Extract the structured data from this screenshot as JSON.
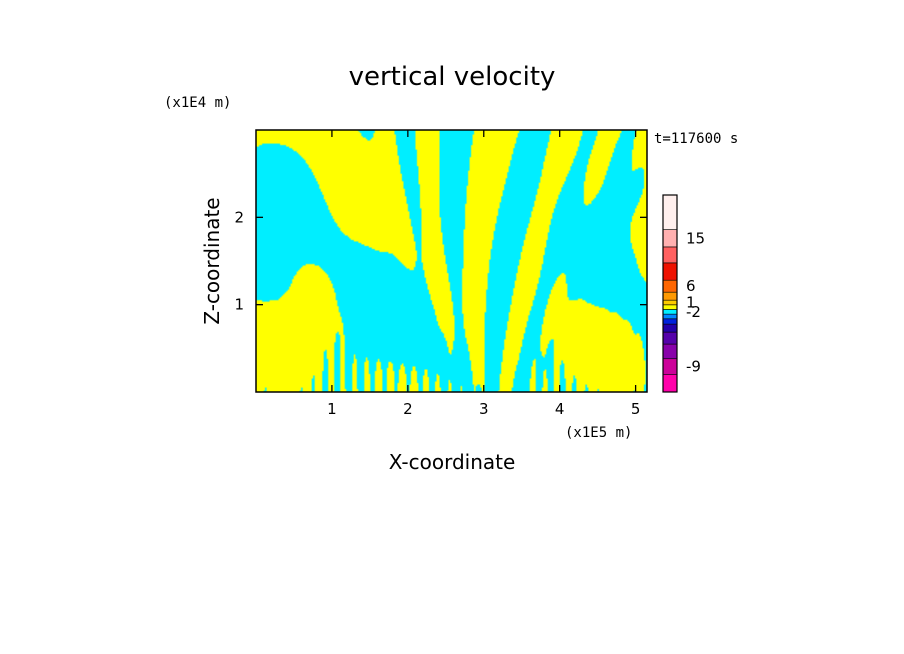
{
  "chart_data": {
    "type": "heatmap",
    "title": "vertical velocity",
    "xlabel": "X-coordinate",
    "ylabel": "Z-coordinate",
    "x_unit": "(x1E5 m)",
    "y_unit": "(x1E4 m)",
    "time_label": "t=117600 s",
    "xlim": [
      0,
      5.15
    ],
    "ylim": [
      0,
      3.0
    ],
    "x_ticks": [
      1,
      2,
      3,
      4,
      5
    ],
    "y_ticks": [
      1,
      2
    ],
    "grid": false,
    "colorbar": {
      "levels": [
        {
          "color": "#ff00aa"
        },
        {
          "color": "#cc0099"
        },
        {
          "color": "#8800aa"
        },
        {
          "color": "#5500aa"
        },
        {
          "color": "#2200aa"
        },
        {
          "color": "#0022dd"
        },
        {
          "color": "#0088ff"
        },
        {
          "color": "#00eeff"
        },
        {
          "color": "#ffff00"
        },
        {
          "color": "#ffcc00"
        },
        {
          "color": "#ff9900"
        },
        {
          "color": "#ff6600"
        },
        {
          "color": "#ee1100"
        },
        {
          "color": "#ff6060"
        },
        {
          "color": "#ffb0b0"
        },
        {
          "color": "#fff0ee"
        }
      ],
      "tick_labels": [
        {
          "text": "15",
          "level": 14
        },
        {
          "text": "6",
          "level": 11
        },
        {
          "text": "1",
          "level": 9
        },
        {
          "text": "-2",
          "level": 7
        },
        {
          "text": "-9",
          "level": 1
        }
      ]
    },
    "field_colors": {
      "negative": "#00eeff",
      "positive": "#ffff00"
    }
  }
}
